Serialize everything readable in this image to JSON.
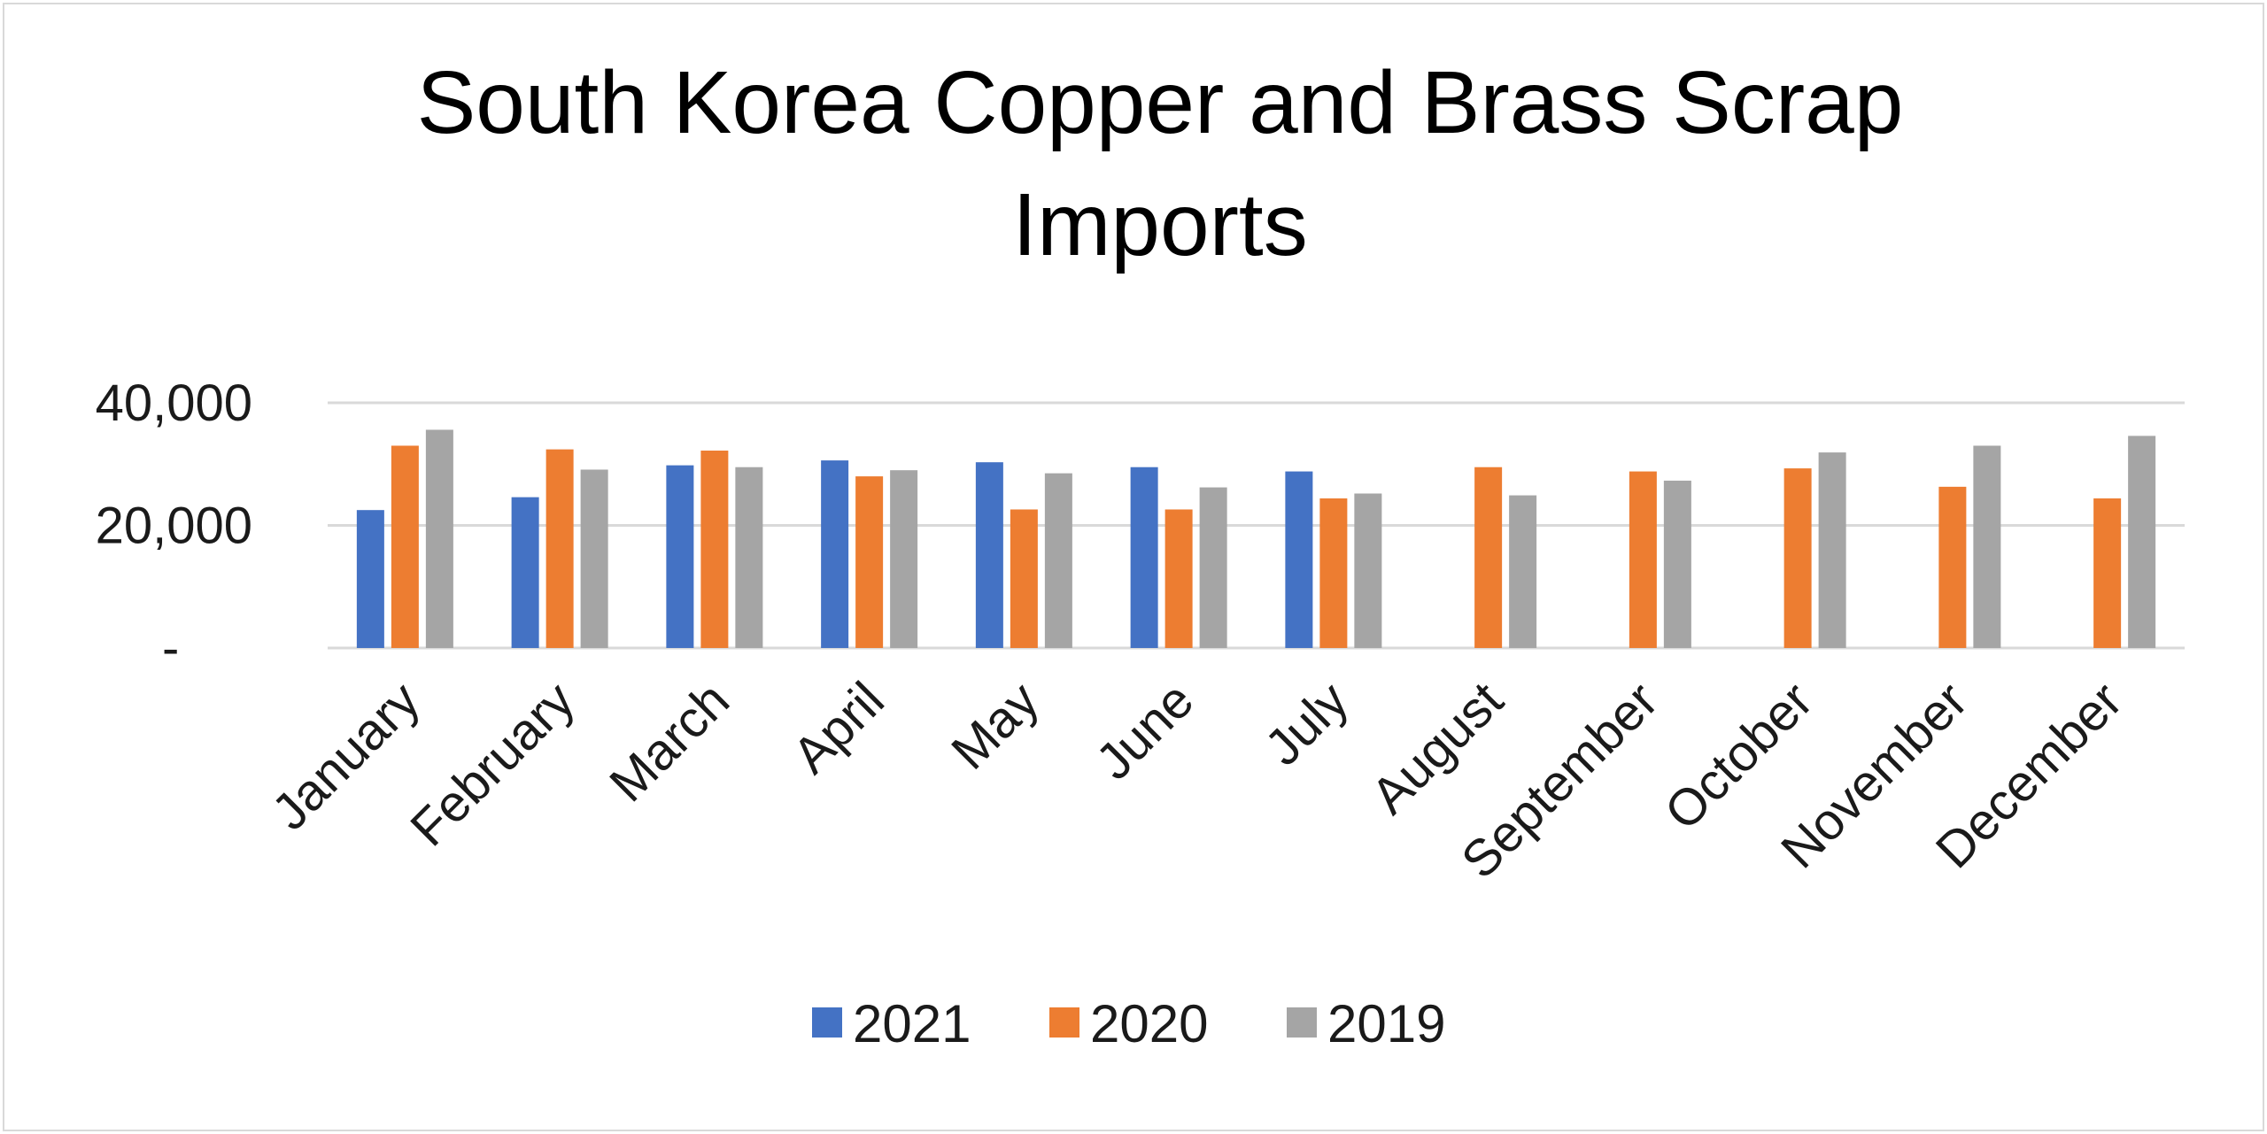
{
  "chart_data": {
    "type": "bar",
    "title_lines": [
      "South Korea Copper and Brass Scrap",
      "Imports"
    ],
    "xlabel": "",
    "ylabel": "",
    "ylim": [
      0,
      40000
    ],
    "yticks": [
      {
        "value": 0,
        "label": "-"
      },
      {
        "value": 20000,
        "label": "20,000"
      },
      {
        "value": 40000,
        "label": "40,000"
      }
    ],
    "grid": true,
    "legend_position": "bottom",
    "categories": [
      "January",
      "February",
      "March",
      "April",
      "May",
      "June",
      "July",
      "August",
      "September",
      "October",
      "November",
      "December"
    ],
    "series": [
      {
        "name": "2021",
        "color": "#4472c4",
        "values": [
          22500,
          24600,
          29800,
          30600,
          30300,
          29500,
          28800,
          null,
          null,
          null,
          null,
          null
        ]
      },
      {
        "name": "2020",
        "color": "#ed7d31",
        "values": [
          33000,
          32400,
          32200,
          28000,
          22600,
          22600,
          24400,
          29500,
          28800,
          29300,
          26300,
          24400
        ]
      },
      {
        "name": "2019",
        "color": "#a5a5a5",
        "values": [
          35600,
          29100,
          29500,
          29000,
          28500,
          26200,
          25200,
          24900,
          27300,
          31900,
          33000,
          34600
        ]
      }
    ]
  }
}
